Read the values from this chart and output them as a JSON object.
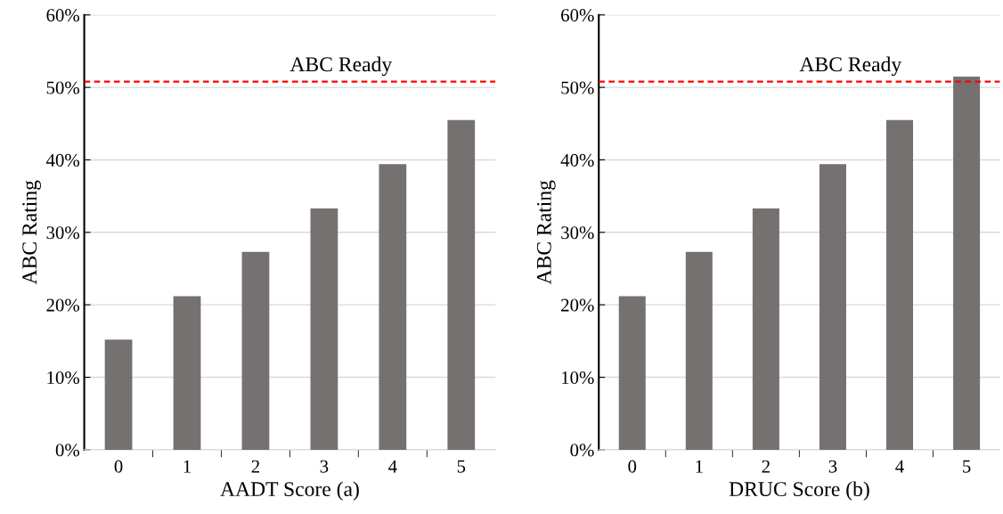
{
  "chart_data": [
    {
      "type": "bar",
      "xlabel": "AADT Score (a)",
      "ylabel": "ABC Rating",
      "categories": [
        "0",
        "1",
        "2",
        "3",
        "4",
        "5"
      ],
      "color": "#767171",
      "values": [
        15.2,
        21.2,
        27.3,
        33.3,
        39.4,
        45.5
      ],
      "ylim": [
        0,
        60
      ],
      "yticks": [
        {
          "value": 0,
          "label": "0%"
        },
        {
          "value": 10,
          "label": "10%"
        },
        {
          "value": 20,
          "label": "20%"
        },
        {
          "value": 30,
          "label": "30%"
        },
        {
          "value": 40,
          "label": "40%"
        },
        {
          "value": 50,
          "label": "50%"
        },
        {
          "value": 60,
          "label": "60%"
        }
      ],
      "grid": "y",
      "ref_lines": [
        {
          "axis": "y",
          "value": 50.8,
          "label": "ABC Ready",
          "color": "#ff0000",
          "line_style": "dashed"
        }
      ]
    },
    {
      "type": "bar",
      "xlabel": "DRUC Score (b)",
      "ylabel": "ABC Rating",
      "categories": [
        "0",
        "1",
        "2",
        "3",
        "4",
        "5"
      ],
      "color": "#767171",
      "values": [
        21.2,
        27.3,
        33.3,
        39.4,
        45.5,
        51.5
      ],
      "ylim": [
        0,
        60
      ],
      "yticks": [
        {
          "value": 0,
          "label": "0%"
        },
        {
          "value": 10,
          "label": "10%"
        },
        {
          "value": 20,
          "label": "20%"
        },
        {
          "value": 30,
          "label": "30%"
        },
        {
          "value": 40,
          "label": "40%"
        },
        {
          "value": 50,
          "label": "50%"
        },
        {
          "value": 60,
          "label": "60%"
        }
      ],
      "grid": "y",
      "ref_lines": [
        {
          "axis": "y",
          "value": 50.8,
          "label": "ABC Ready",
          "color": "#ff0000",
          "line_style": "dashed"
        }
      ]
    }
  ]
}
